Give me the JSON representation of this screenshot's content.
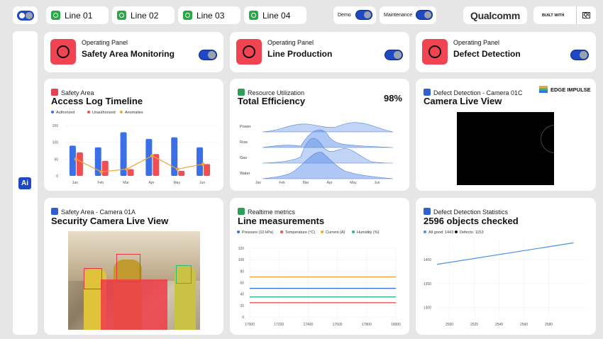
{
  "topbar": {
    "lines": [
      "Line 01",
      "Line 02",
      "Line 03",
      "Line 04"
    ],
    "demo_label": "Demo",
    "maintenance_label": "Maintenance",
    "brand": "Qualcomm",
    "built_with": "BUILT WITH",
    "qt": "Qt"
  },
  "sidebar": {
    "ai_label": "Ai"
  },
  "panels": [
    {
      "kicker": "Operating Panel",
      "title": "Safety Area Monitoring"
    },
    {
      "kicker": "Operating Panel",
      "title": "Line Production"
    },
    {
      "kicker": "Operating Panel",
      "title": "Defect Detection"
    }
  ],
  "access": {
    "kicker": "Safety Area",
    "title": "Access Log Timeline",
    "legend": [
      "Authorized",
      "Unauthorized",
      "Anomalies"
    ],
    "colors": {
      "authorized": "#3b6fe6",
      "unauthorized": "#ef4f52",
      "anomalies": "#f0a436"
    }
  },
  "resource": {
    "kicker": "Resource Utilization",
    "title": "Total Efficiency",
    "value": "98%",
    "rows": [
      "Power",
      "Row",
      "Gas",
      "Water"
    ]
  },
  "camera01c": {
    "kicker": "Defect Detection - Camera 01C",
    "title": "Camera Live View",
    "partner": "EDGE IMPULSE"
  },
  "camera01a": {
    "kicker": "Safety Area - Camera 01A",
    "title": "Security Camera Live View"
  },
  "realtime": {
    "kicker": "Realtime metrics",
    "title": "Line measurements",
    "legend": [
      "Pressure (10 kPa)",
      "Temperature (°C)",
      "Current (A)",
      "Humidity (%)"
    ],
    "colors": {
      "pressure": "#3b6fe6",
      "temperature": "#ef4f52",
      "current": "#f0a436",
      "humidity": "#2eb87a"
    }
  },
  "defectstats": {
    "kicker": "Defect Detection Statistics",
    "title": "2596 objects checked",
    "legend": [
      "All good: 1443",
      "Defects: 1153"
    ],
    "colors": {
      "allgood": "#4a8fe8",
      "defects": "#111111"
    }
  },
  "chart_data": [
    {
      "type": "bar",
      "title": "Access Log Timeline",
      "categories": [
        "Jan",
        "Feb",
        "Mar",
        "Apr",
        "May",
        "Jun"
      ],
      "ylim": [
        0,
        150
      ],
      "yticks": [
        0,
        50,
        100,
        150
      ],
      "series": [
        {
          "name": "Authorized",
          "values": [
            90,
            85,
            130,
            110,
            115,
            85
          ]
        },
        {
          "name": "Unauthorized",
          "values": [
            70,
            45,
            20,
            65,
            15,
            35
          ]
        },
        {
          "name": "Anomalies",
          "values": [
            50,
            12,
            20,
            60,
            20,
            35
          ],
          "style": "line"
        }
      ]
    },
    {
      "type": "area",
      "title": "Total Efficiency",
      "categories": [
        "Jan",
        "Feb",
        "Mar",
        "Apr",
        "May",
        "Jun"
      ],
      "series": [
        {
          "name": "Power"
        },
        {
          "name": "Row"
        },
        {
          "name": "Gas"
        },
        {
          "name": "Water"
        }
      ]
    },
    {
      "type": "line",
      "title": "Line measurements",
      "xlim": [
        17000,
        18000
      ],
      "ylim": [
        0,
        120
      ],
      "xticks": [
        17000,
        17200,
        17400,
        17600,
        17800,
        18000
      ],
      "yticks": [
        0,
        20,
        40,
        60,
        80,
        100,
        120
      ],
      "series": [
        {
          "name": "Pressure (10 kPa)",
          "values": [
            50,
            50
          ]
        },
        {
          "name": "Temperature (°C)",
          "values": [
            25,
            25
          ]
        },
        {
          "name": "Current (A)",
          "values": [
            70,
            70
          ]
        },
        {
          "name": "Humidity (%)",
          "values": [
            35,
            35
          ]
        }
      ]
    },
    {
      "type": "line",
      "title": "2596 objects checked",
      "xlim": [
        2490,
        2610
      ],
      "ylim": [
        1280,
        1440
      ],
      "xticks": [
        2500,
        2520,
        2540,
        2560,
        2580
      ],
      "yticks": [
        1300,
        1350,
        1400
      ],
      "series": [
        {
          "name": "All good",
          "x": [
            2490,
            2600
          ],
          "y": [
            1390,
            1435
          ]
        }
      ]
    }
  ]
}
